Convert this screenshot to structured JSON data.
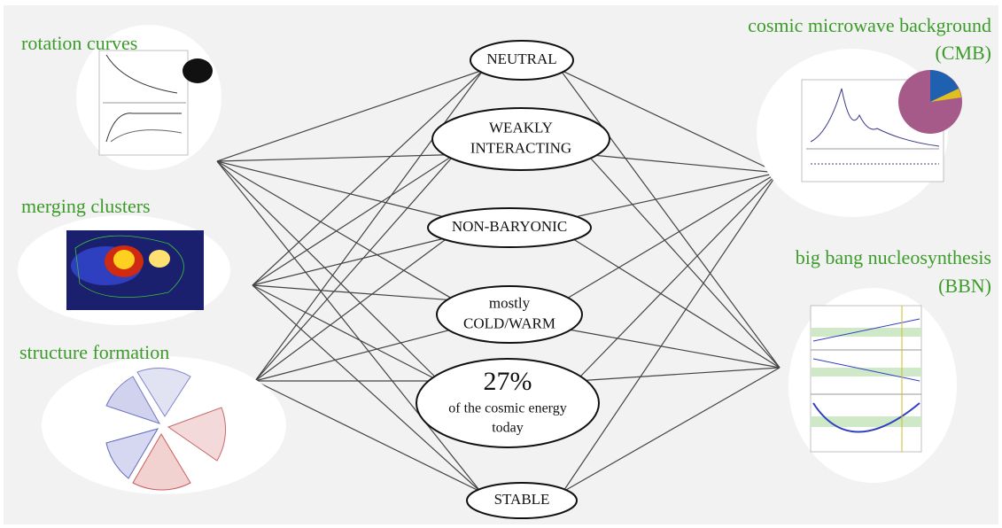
{
  "left_panels": [
    {
      "label": "rotation curves"
    },
    {
      "label": "merging clusters"
    },
    {
      "label": "structure formation"
    }
  ],
  "right_panels": [
    {
      "label_lines": [
        "cosmic microwave background",
        "(CMB)"
      ]
    },
    {
      "label_lines": [
        "big bang nucleosynthesis",
        "(BBN)"
      ]
    }
  ],
  "nodes": [
    {
      "lines": [
        "NEUTRAL"
      ]
    },
    {
      "lines": [
        "WEAKLY",
        "INTERACTING"
      ]
    },
    {
      "lines": [
        "NON-BARYONIC"
      ]
    },
    {
      "lines": [
        "mostly",
        "COLD/WARM"
      ]
    },
    {
      "lines": [
        "27%",
        "of the cosmic energy",
        "today"
      ]
    },
    {
      "lines": [
        "STABLE"
      ]
    }
  ]
}
